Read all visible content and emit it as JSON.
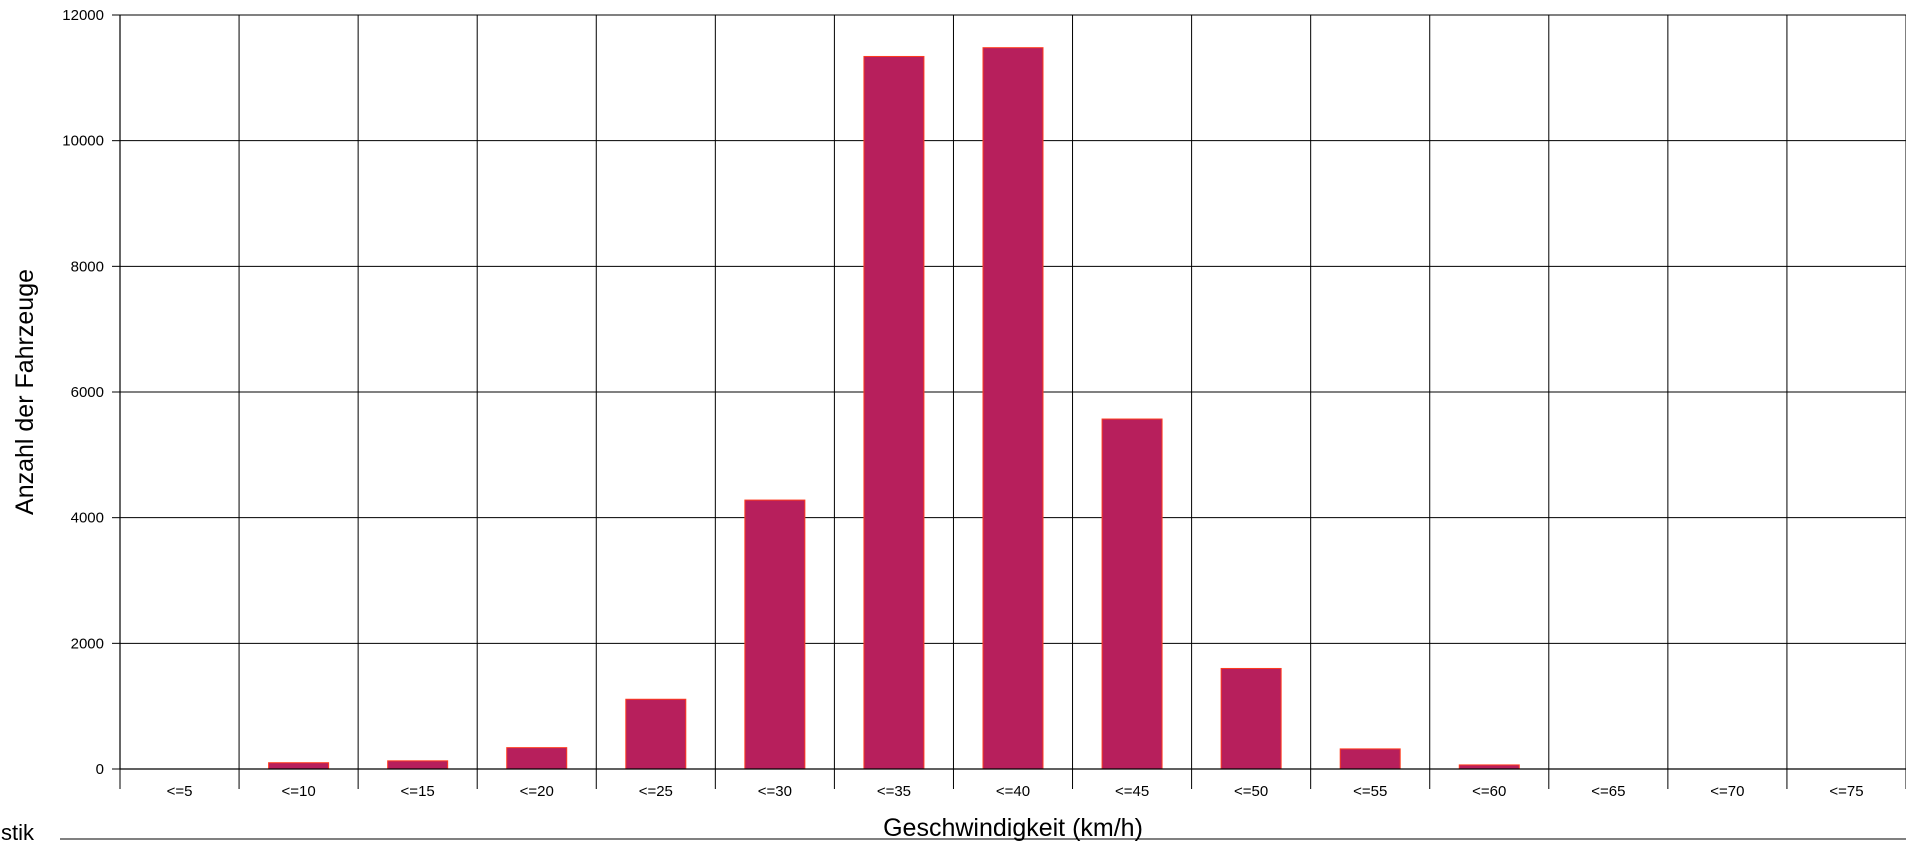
{
  "chart_data": {
    "type": "bar",
    "categories": [
      "<=5",
      "<=10",
      "<=15",
      "<=20",
      "<=25",
      "<=30",
      "<=35",
      "<=40",
      "<=45",
      "<=50",
      "<=55",
      "<=60",
      "<=65",
      "<=70",
      "<=75"
    ],
    "series": [
      {
        "values": [
          0,
          100,
          130,
          340,
          1110,
          4280,
          11340,
          11480,
          5570,
          1600,
          320,
          65,
          0,
          0,
          0
        ]
      }
    ],
    "xlabel": "Geschwindigkeit (km/h)",
    "ylabel": "Anzahl der Fahrzeuge",
    "ylim": [
      0,
      12000
    ],
    "yticks": [
      0,
      2000,
      4000,
      6000,
      8000,
      10000,
      12000
    ],
    "grid": true,
    "legend": "none",
    "colors": {
      "bar_fill": "#b71f5c",
      "bar_edge": "#ff3b1f",
      "grid": "#000000"
    }
  },
  "footer": {
    "fragment": "tistik"
  }
}
